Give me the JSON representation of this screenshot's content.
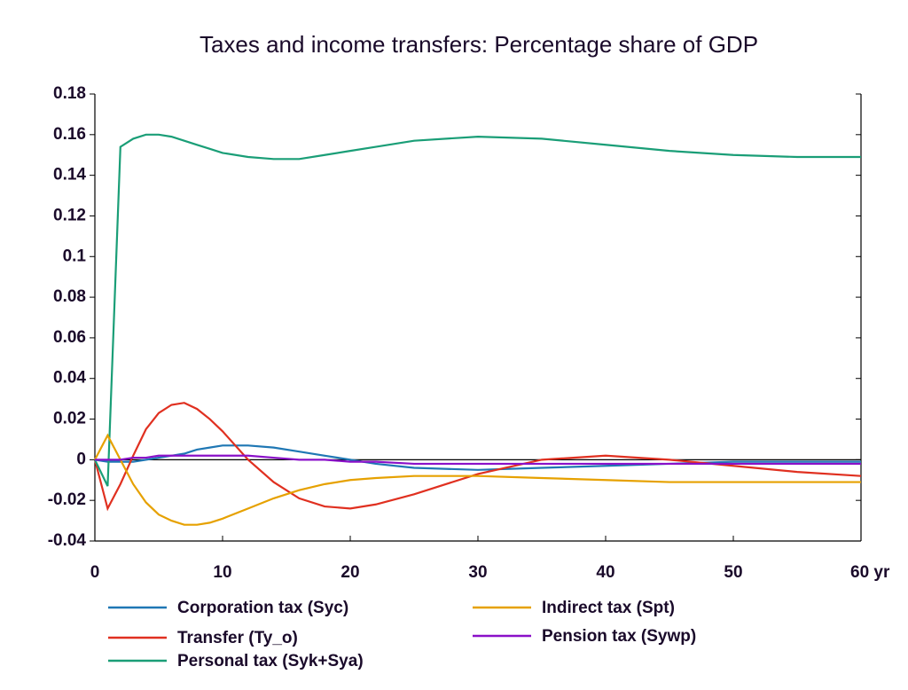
{
  "chart_data": {
    "type": "line",
    "title": "Taxes and income transfers: Percentage share of GDP",
    "x": [
      0,
      1,
      2,
      3,
      4,
      5,
      6,
      7,
      8,
      9,
      10,
      12,
      14,
      16,
      18,
      20,
      22,
      25,
      30,
      35,
      40,
      45,
      50,
      55,
      60
    ],
    "series": [
      {
        "name": "Corporation tax (Syc)",
        "color": "#1f77b4",
        "values": [
          0,
          -0.001,
          -0.001,
          -0.001,
          0,
          0.001,
          0.002,
          0.003,
          0.005,
          0.006,
          0.007,
          0.007,
          0.006,
          0.004,
          0.002,
          0,
          -0.002,
          -0.004,
          -0.005,
          -0.004,
          -0.003,
          -0.002,
          -0.001,
          -0.001,
          -0.001
        ]
      },
      {
        "name": "Transfer (Ty_o)",
        "color": "#e03020",
        "values": [
          0,
          -0.024,
          -0.012,
          0.002,
          0.015,
          0.023,
          0.027,
          0.028,
          0.025,
          0.02,
          0.014,
          0,
          -0.011,
          -0.019,
          -0.023,
          -0.024,
          -0.022,
          -0.017,
          -0.007,
          0,
          0.002,
          0,
          -0.003,
          -0.006,
          -0.008
        ]
      },
      {
        "name": "Personal tax (Syk+Sya)",
        "color": "#1a9e77",
        "values": [
          0,
          -0.013,
          0.154,
          0.158,
          0.16,
          0.16,
          0.159,
          0.157,
          0.155,
          0.153,
          0.151,
          0.149,
          0.148,
          0.148,
          0.15,
          0.152,
          0.154,
          0.157,
          0.159,
          0.158,
          0.155,
          0.152,
          0.15,
          0.149,
          0.149
        ]
      },
      {
        "name": "Indirect tax (Spt)",
        "color": "#e6a100",
        "values": [
          0,
          0.012,
          0,
          -0.012,
          -0.021,
          -0.027,
          -0.03,
          -0.032,
          -0.032,
          -0.031,
          -0.029,
          -0.024,
          -0.019,
          -0.015,
          -0.012,
          -0.01,
          -0.009,
          -0.008,
          -0.008,
          -0.009,
          -0.01,
          -0.011,
          -0.011,
          -0.011,
          -0.011
        ]
      },
      {
        "name": "Pension tax (Sywp)",
        "color": "#8a10c8",
        "values": [
          0,
          0,
          0,
          0.001,
          0.001,
          0.002,
          0.002,
          0.002,
          0.002,
          0.002,
          0.002,
          0.002,
          0.001,
          0,
          0,
          -0.001,
          -0.001,
          -0.002,
          -0.002,
          -0.002,
          -0.002,
          -0.002,
          -0.002,
          -0.002,
          -0.002
        ]
      }
    ],
    "xlim": [
      0,
      60
    ],
    "xticks": [
      0,
      10,
      20,
      30,
      40,
      50,
      {
        "value": 60,
        "label": "60 yr"
      }
    ],
    "ylim": [
      -0.04,
      0.18
    ],
    "yticks": [
      -0.04,
      -0.02,
      0,
      0.02,
      0.04,
      0.06,
      0.08,
      0.1,
      0.12,
      0.14,
      0.16,
      0.18
    ],
    "legend": "bottom"
  }
}
